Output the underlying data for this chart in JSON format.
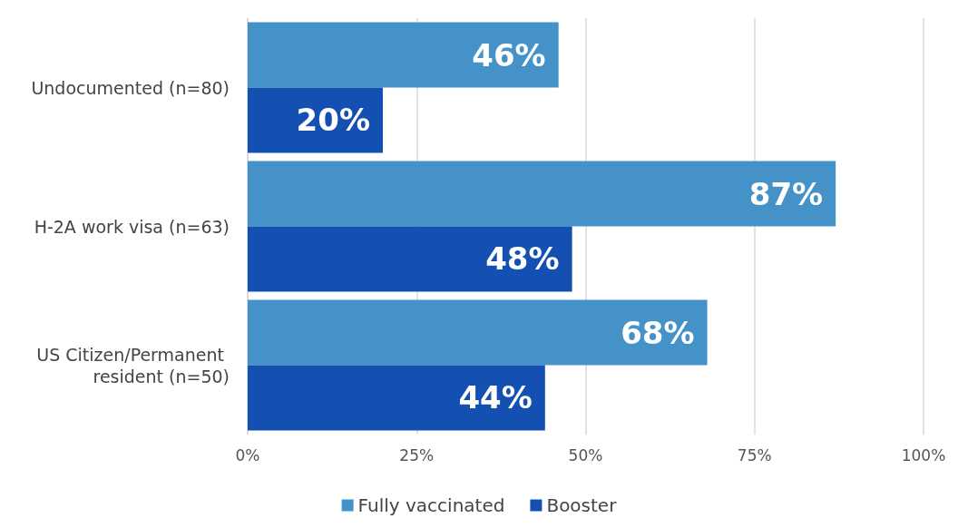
{
  "chart_data": {
    "type": "bar",
    "orientation": "horizontal",
    "categories": [
      "Undocumented (n=80)",
      "H-2A work visa (n=63)",
      "US Citizen/Permanent resident (n=50)"
    ],
    "series": [
      {
        "name": "Fully vaccinated",
        "color": "#4592c9",
        "values": [
          46,
          87,
          68
        ],
        "value_labels": [
          "46%",
          "87%",
          "68%"
        ]
      },
      {
        "name": "Booster",
        "color": "#1450b2",
        "values": [
          20,
          48,
          44
        ],
        "value_labels": [
          "20%",
          "48%",
          "44%"
        ]
      }
    ],
    "xlim": [
      0,
      100
    ],
    "xticks": [
      {
        "value": 0,
        "label": "0%"
      },
      {
        "value": 25,
        "label": "25%"
      },
      {
        "value": 50,
        "label": "50%"
      },
      {
        "value": 75,
        "label": "75%"
      },
      {
        "value": 100,
        "label": "100%"
      }
    ],
    "grid": "x",
    "legend": "bottom"
  }
}
